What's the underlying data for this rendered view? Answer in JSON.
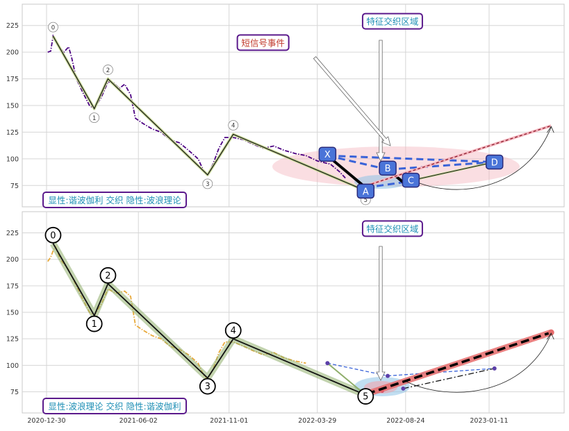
{
  "chart_data": [
    {
      "type": "line",
      "panel": "top",
      "ylim": [
        55,
        245
      ],
      "yticks": [
        75,
        100,
        125,
        150,
        175,
        200,
        225
      ],
      "grid": true,
      "series": [
        {
          "style": "dash-dot",
          "color": "#4b0082",
          "points": [
            [
              "2021-01-01",
              200
            ],
            [
              "2021-01-06",
              201
            ],
            [
              "2021-01-10",
              215
            ],
            [
              "2021-01-14",
              210
            ],
            [
              "2021-01-20",
              205
            ],
            [
              "2021-01-28",
              200
            ],
            [
              "2021-02-05",
              205
            ],
            [
              "2021-02-10",
              195
            ],
            [
              "2021-02-18",
              175
            ],
            [
              "2021-03-01",
              162
            ],
            [
              "2021-03-12",
              150
            ],
            [
              "2021-03-20",
              147
            ],
            [
              "2021-04-01",
              158
            ],
            [
              "2021-04-12",
              172
            ],
            [
              "2021-04-20",
              172
            ],
            [
              "2021-05-01",
              166
            ],
            [
              "2021-05-10",
              170
            ],
            [
              "2021-05-20",
              160
            ],
            [
              "2021-05-28",
              138
            ],
            [
              "2021-06-10",
              133
            ],
            [
              "2021-06-25",
              128
            ],
            [
              "2021-07-10",
              125
            ],
            [
              "2021-07-25",
              118
            ],
            [
              "2021-08-10",
              115
            ],
            [
              "2021-08-25",
              108
            ],
            [
              "2021-09-10",
              100
            ],
            [
              "2021-09-20",
              88
            ],
            [
              "2021-09-26",
              85
            ],
            [
              "2021-10-05",
              95
            ],
            [
              "2021-10-15",
              110
            ],
            [
              "2021-10-25",
              120
            ],
            [
              "2021-11-08",
              120
            ],
            [
              "2021-11-25",
              118
            ],
            [
              "2021-12-10",
              114
            ],
            [
              "2021-12-28",
              110
            ],
            [
              "2022-01-15",
              112
            ],
            [
              "2022-02-01",
              108
            ],
            [
              "2022-02-20",
              105
            ],
            [
              "2022-03-10",
              103
            ],
            [
              "2022-03-29",
              98
            ],
            [
              "2022-04-20",
              95
            ],
            [
              "2022-05-05",
              88
            ],
            [
              "2022-05-15",
              82
            ]
          ]
        }
      ],
      "elliott_points": [
        {
          "label": "0",
          "x": "2021-01-10",
          "y": 215
        },
        {
          "label": "1",
          "x": "2021-03-20",
          "y": 147
        },
        {
          "label": "2",
          "x": "2021-04-12",
          "y": 175
        },
        {
          "label": "3",
          "x": "2021-09-26",
          "y": 85
        },
        {
          "label": "4",
          "x": "2021-11-08",
          "y": 123
        },
        {
          "label": "5",
          "x": "2022-06-18",
          "y": 70
        }
      ],
      "harmonic_points": [
        {
          "label": "X",
          "x": "2022-04-15",
          "y": 103
        },
        {
          "label": "A",
          "x": "2022-06-18",
          "y": 73
        },
        {
          "label": "B",
          "x": "2022-07-25",
          "y": 90
        },
        {
          "label": "C",
          "x": "2022-08-20",
          "y": 78
        },
        {
          "label": "D",
          "x": "2023-01-20",
          "y": 97
        }
      ],
      "projection": {
        "from": [
          "2022-06-20",
          75
        ],
        "to": [
          "2023-04-25",
          131
        ]
      },
      "annotations": [
        {
          "text": "特征交织区域",
          "x": "2022-08-02",
          "y": 229
        },
        {
          "text": "短信号事件",
          "x": "2021-12-28",
          "y": 209
        }
      ],
      "footer_label": "显性:谐波伽利 交织 隐性:波浪理论"
    },
    {
      "type": "line",
      "panel": "bottom",
      "ylim": [
        55,
        245
      ],
      "yticks": [
        75,
        100,
        125,
        150,
        175,
        200,
        225
      ],
      "xticks": [
        "2020-12-30",
        "2021-06-02",
        "2021-11-01",
        "2022-03-29",
        "2022-08-24",
        "2023-01-11"
      ],
      "grid": true,
      "series": [
        {
          "style": "dash-dot",
          "color": "#e8a93a",
          "points": [
            [
              "2021-01-01",
              198
            ],
            [
              "2021-01-06",
              202
            ],
            [
              "2021-01-10",
              208
            ],
            [
              "2021-01-14",
              212
            ],
            [
              "2021-01-22",
              200
            ],
            [
              "2021-02-05",
              190
            ],
            [
              "2021-02-18",
              175
            ],
            [
              "2021-03-01",
              162
            ],
            [
              "2021-03-12",
              150
            ],
            [
              "2021-03-20",
              147
            ],
            [
              "2021-04-01",
              158
            ],
            [
              "2021-04-12",
              172
            ],
            [
              "2021-04-25",
              168
            ],
            [
              "2021-05-10",
              170
            ],
            [
              "2021-05-20",
              165
            ],
            [
              "2021-05-28",
              138
            ],
            [
              "2021-06-10",
              133
            ],
            [
              "2021-06-25",
              128
            ],
            [
              "2021-07-10",
              125
            ],
            [
              "2021-07-25",
              118
            ],
            [
              "2021-08-10",
              115
            ],
            [
              "2021-08-25",
              110
            ],
            [
              "2021-09-10",
              102
            ],
            [
              "2021-09-20",
              90
            ],
            [
              "2021-09-26",
              87
            ],
            [
              "2021-10-05",
              96
            ],
            [
              "2021-10-15",
              112
            ],
            [
              "2021-10-25",
              122
            ],
            [
              "2021-11-08",
              122
            ],
            [
              "2021-11-25",
              118
            ],
            [
              "2021-12-10",
              114
            ],
            [
              "2021-12-28",
              110
            ],
            [
              "2022-01-15",
              112
            ],
            [
              "2022-02-01",
              107
            ],
            [
              "2022-02-20",
              104
            ],
            [
              "2022-03-10",
              102
            ]
          ]
        }
      ],
      "elliott_points": [
        {
          "label": "0",
          "x": "2021-01-10",
          "y": 215
        },
        {
          "label": "1",
          "x": "2021-03-20",
          "y": 147
        },
        {
          "label": "2",
          "x": "2021-04-12",
          "y": 177
        },
        {
          "label": "3",
          "x": "2021-09-26",
          "y": 88
        },
        {
          "label": "4",
          "x": "2021-11-08",
          "y": 125
        },
        {
          "label": "5",
          "x": "2022-06-18",
          "y": 72
        }
      ],
      "harmonic_points": [
        {
          "label": "",
          "x": "2022-04-15",
          "y": 102
        },
        {
          "label": "",
          "x": "2022-07-25",
          "y": 90
        },
        {
          "label": "",
          "x": "2022-08-20",
          "y": 78
        },
        {
          "label": "",
          "x": "2023-01-20",
          "y": 97
        }
      ],
      "projection": {
        "from": [
          "2022-06-20",
          73
        ],
        "to": [
          "2023-04-25",
          131
        ]
      },
      "annotations": [
        {
          "text": "特征交织区域",
          "x": "2022-08-02",
          "y": 229
        }
      ],
      "footer_label": "显性:波浪理论 交织 隐性:谐波伽利"
    }
  ],
  "colors": {
    "accent_purple": "#5b1a8c",
    "pattern_blue": "#3a63d8",
    "projection_red": "#e66b6b",
    "annotation_text_blue": "#1f8fb5",
    "annotation_text_red": "#c0392b"
  }
}
